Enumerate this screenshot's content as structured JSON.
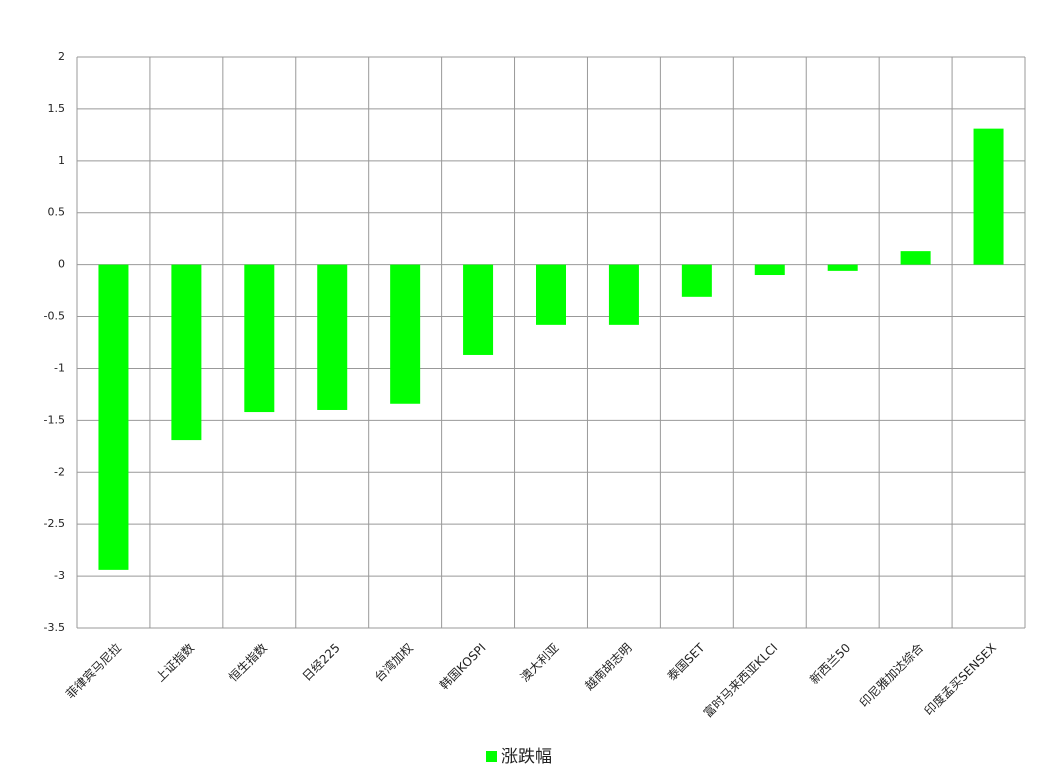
{
  "chart_data": {
    "type": "bar",
    "categories": [
      "菲律宾马尼拉",
      "上证指数",
      "恒生指数",
      "日经225",
      "台湾加权",
      "韩国KOSPI",
      "澳大利亚",
      "越南胡志明",
      "泰国SET",
      "富时马来西亚KLCI",
      "新西兰50",
      "印尼雅加达综合",
      "印度孟买SENSEX"
    ],
    "series": [
      {
        "name": "涨跌幅",
        "color": "#00ff00",
        "values": [
          -2.94,
          -1.69,
          -1.42,
          -1.4,
          -1.34,
          -0.87,
          -0.58,
          -0.58,
          -0.31,
          -0.1,
          -0.06,
          0.13,
          1.31
        ]
      }
    ],
    "ylim": [
      -3.5,
      2
    ],
    "yticks": [
      -3.5,
      -3,
      -2.5,
      -2,
      -1.5,
      -1,
      -0.5,
      0,
      0.5,
      1,
      1.5,
      2
    ],
    "grid": true,
    "legend": "bottom"
  }
}
